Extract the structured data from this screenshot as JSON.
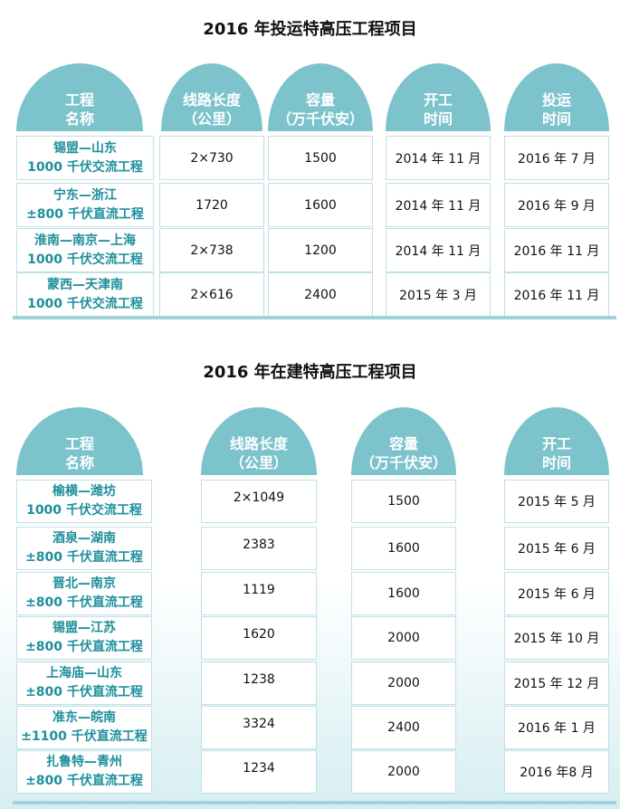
{
  "table1": {
    "title": "2016 年投运特高压工程项目",
    "headers": [
      [
        "工程",
        "名称"
      ],
      [
        "线路长度",
        "（公里）"
      ],
      [
        "容量",
        "（万千伏安）"
      ],
      [
        "开工",
        "时间"
      ],
      [
        "投运",
        "时间"
      ]
    ],
    "rows": [
      {
        "name": [
          "锡盟—山东",
          "1000 千伏交流工程"
        ],
        "length": "2×730",
        "capacity": "1500",
        "start": "2014 年 11 月",
        "op": "2016 年 7 月"
      },
      {
        "name": [
          "宁东—浙江",
          "±800 千伏直流工程"
        ],
        "length": "1720",
        "capacity": "1600",
        "start": "2014 年 11 月",
        "op": "2016 年 9 月"
      },
      {
        "name": [
          "淮南—南京—上海",
          "1000 千伏交流工程"
        ],
        "length": "2×738",
        "capacity": "1200",
        "start": "2014 年 11 月",
        "op": "2016 年 11 月"
      },
      {
        "name": [
          "蒙西—天津南",
          "1000 千伏交流工程"
        ],
        "length": "2×616",
        "capacity": "2400",
        "start": "2015 年 3 月",
        "op": "2016 年 11 月"
      }
    ]
  },
  "table2": {
    "title": "2016 年在建特高压工程项目",
    "headers": [
      [
        "工程",
        "名称"
      ],
      [
        "线路长度",
        "（公里）"
      ],
      [
        "容量",
        "（万千伏安）"
      ],
      [
        "开工",
        "时间"
      ]
    ],
    "rows": [
      {
        "name": [
          "榆横—潍坊",
          "1000 千伏交流工程"
        ],
        "length": "2×1049",
        "capacity": "1500",
        "start": "2015 年 5 月"
      },
      {
        "name": [
          "酒泉—湖南",
          "±800 千伏直流工程"
        ],
        "length": "2383",
        "capacity": "1600",
        "start": "2015 年 6 月"
      },
      {
        "name": [
          "晋北—南京",
          "±800 千伏直流工程"
        ],
        "length": "1119",
        "capacity": "1600",
        "start": "2015 年 6 月"
      },
      {
        "name": [
          "锡盟—江苏",
          "±800 千伏直流工程"
        ],
        "length": "1620",
        "capacity": "2000",
        "start": "2015 年 10 月"
      },
      {
        "name": [
          "上海庙—山东",
          "±800 千伏直流工程"
        ],
        "length": "1238",
        "capacity": "2000",
        "start": "2015 年 12 月"
      },
      {
        "name": [
          "准东—皖南",
          "±1100 千伏直流工程"
        ],
        "length": "3324",
        "capacity": "2400",
        "start": "2016 年 1 月"
      },
      {
        "name": [
          "扎鲁特—青州",
          "±800 千伏直流工程"
        ],
        "length": "1234",
        "capacity": "2000",
        "start": "2016 年8 月"
      }
    ]
  }
}
